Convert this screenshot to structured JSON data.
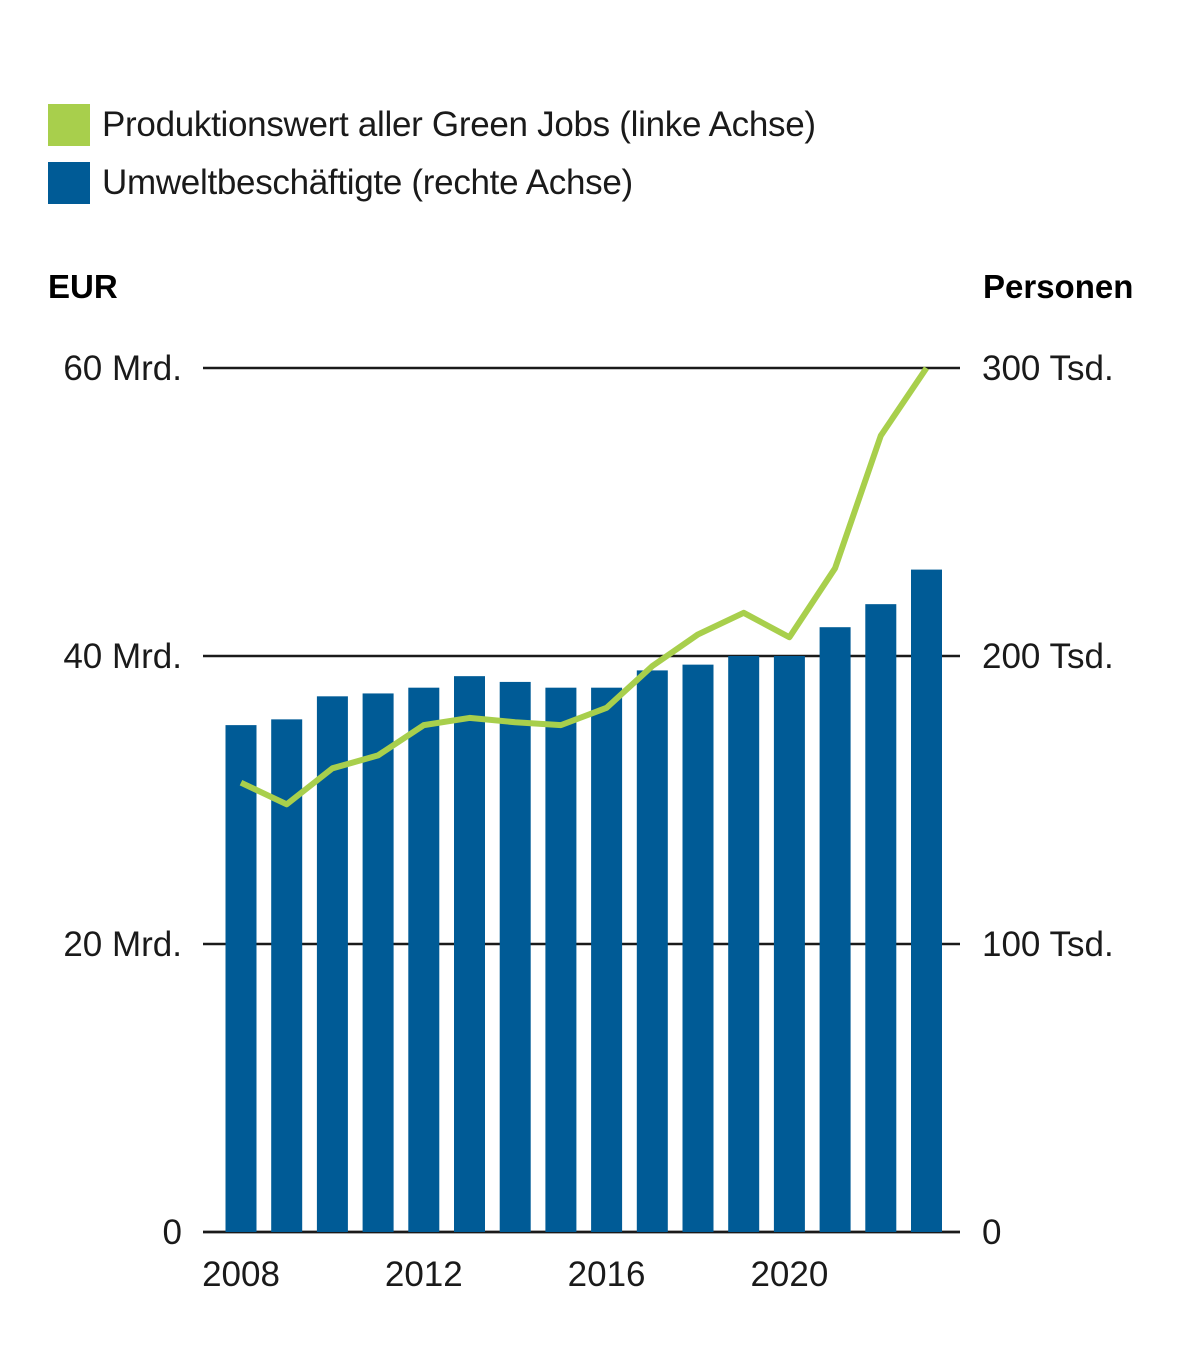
{
  "legend": {
    "line_label": "Produktionswert aller Green Jobs (linke Achse)",
    "bar_label": "Umweltbeschäftigte (rechte Achse)"
  },
  "colors": {
    "line": "#a8cf4c",
    "bar": "#005b96",
    "grid": "#1a1a1a",
    "text": "#1a1a1a"
  },
  "chart_data": {
    "type": "bar",
    "title": "",
    "left_axis": {
      "label": "EUR",
      "ylim": [
        0,
        60
      ],
      "ticks": [
        0,
        20,
        40,
        60
      ],
      "tick_labels": [
        "0",
        "20 Mrd.",
        "40 Mrd.",
        "60 Mrd."
      ]
    },
    "right_axis": {
      "label": "Personen",
      "ylim": [
        0,
        300
      ],
      "ticks": [
        0,
        100,
        200,
        300
      ],
      "tick_labels": [
        "0",
        "100 Tsd.",
        "200 Tsd.",
        "300 Tsd."
      ]
    },
    "x": [
      2008,
      2009,
      2010,
      2011,
      2012,
      2013,
      2014,
      2015,
      2016,
      2017,
      2018,
      2019,
      2020,
      2021,
      2022,
      2023
    ],
    "x_tick_labels": [
      "2008",
      "2012",
      "2016",
      "2020"
    ],
    "x_tick_values": [
      2008,
      2012,
      2016,
      2020
    ],
    "grid": true,
    "legend_position": "top-left",
    "series": [
      {
        "name": "Umweltbeschäftigte (rechte Achse)",
        "type": "bar",
        "axis": "right",
        "values": [
          176,
          178,
          186,
          187,
          189,
          193,
          191,
          189,
          189,
          195,
          197,
          200,
          200,
          210,
          218,
          230
        ]
      },
      {
        "name": "Produktionswert aller Green Jobs (linke Achse)",
        "type": "line",
        "axis": "left",
        "values": [
          31.2,
          29.7,
          32.2,
          33.1,
          35.2,
          35.7,
          35.4,
          35.2,
          36.4,
          39.3,
          41.5,
          43.0,
          41.3,
          46.1,
          55.3,
          60.0
        ]
      }
    ]
  }
}
